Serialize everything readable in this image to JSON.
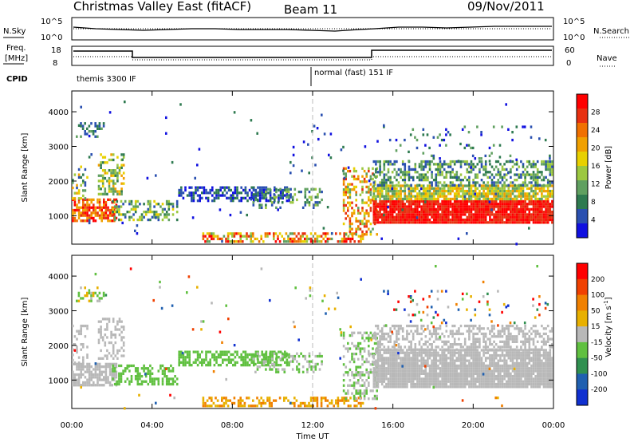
{
  "header": {
    "title": "Christmas Valley East (fitACF)",
    "beam": "Beam 11",
    "date": "09/Nov/2011"
  },
  "summary_panels": {
    "nsky_label": "N.Sky",
    "nsky_ticks": [
      "10^5",
      "10^0"
    ],
    "nsearch_label": "N.Search",
    "nsearch_ticks": [
      "10^5",
      "10^0"
    ],
    "freq_label_1": "Freq.",
    "freq_label_2": "[MHz]",
    "freq_ticks": [
      "18",
      "8"
    ],
    "nave_label": "Nave",
    "nave_ticks": [
      "60",
      "0"
    ],
    "cpid_label": "CPID",
    "cpid_segments": [
      "themis 3300 IF",
      "normal (fast) 151 IF"
    ]
  },
  "chart_data": [
    {
      "type": "heatmap",
      "name": "power",
      "ylabel": "Slant Range [km]",
      "xlim": [
        0,
        24
      ],
      "ylim": [
        180,
        4600
      ],
      "yticks": [
        1000,
        2000,
        3000,
        4000
      ],
      "x_tick_labels": [
        "00:00",
        "04:00",
        "08:00",
        "12:00",
        "16:00",
        "20:00",
        "00:00"
      ],
      "colorbar_label": "Power [dB]",
      "colorbar_ticks": [
        "28",
        "24",
        "20",
        "16",
        "12",
        "8",
        "4"
      ],
      "colors": [
        "#1010e0",
        "#2a50b0",
        "#2e7a50",
        "#60a060",
        "#9cc840",
        "#e8d000",
        "#f0a000",
        "#f07000",
        "#e83010",
        "#ff0000"
      ]
    },
    {
      "type": "heatmap",
      "name": "velocity",
      "ylabel": "Slant Range [km]",
      "xlim": [
        0,
        24
      ],
      "ylim": [
        180,
        4600
      ],
      "yticks": [
        1000,
        2000,
        3000,
        4000
      ],
      "x_tick_labels": [
        "00:00",
        "04:00",
        "08:00",
        "12:00",
        "16:00",
        "20:00",
        "00:00"
      ],
      "xlabel": "Time UT",
      "colorbar_label": "Velocity [m s",
      "colorbar_unit_exp": "-1",
      "colorbar_unit_close": "]",
      "colorbar_ticks": [
        "200",
        "100",
        "50",
        "15",
        "-15",
        "-50",
        "-100",
        "-200"
      ],
      "colors": [
        "#1030d0",
        "#2060b0",
        "#309050",
        "#60c040",
        "#b8b8b8",
        "#e8b000",
        "#f08000",
        "#f04000",
        "#ff0000"
      ]
    }
  ]
}
